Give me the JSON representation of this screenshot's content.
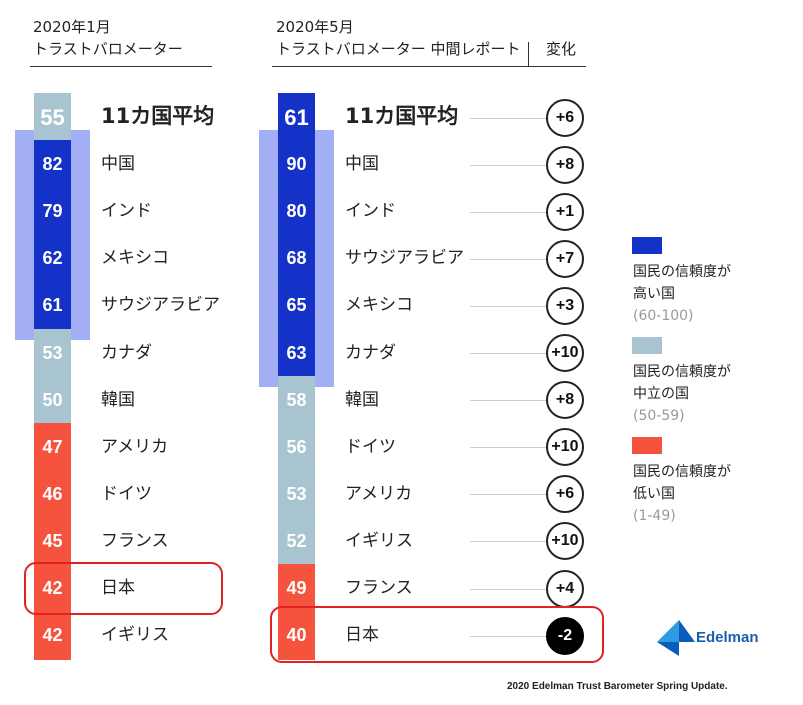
{
  "headers": {
    "left_line1": "2020年1月",
    "left_line2": "トラストバロメーター",
    "right_line1": "2020年5月",
    "right_line2": "トラストバロメーター 中間レポート",
    "change_label": "変化"
  },
  "colors": {
    "high": "#1432c8",
    "neutral": "#a9c4d1",
    "low": "#f5533d",
    "band": "#a3aff5",
    "highlight": "#e02222"
  },
  "chart_data": {
    "type": "table",
    "columns": [
      "2020年1月 トラストバロメーター",
      "2020年5月 トラストバロメーター 中間レポート",
      "変化"
    ],
    "january": [
      {
        "name": "11カ国平均",
        "value": 55,
        "value_label": "55",
        "level": "neutral"
      },
      {
        "name": "中国",
        "value": 82,
        "value_label": "82",
        "level": "high"
      },
      {
        "name": "インド",
        "value": 79,
        "value_label": "79",
        "level": "high"
      },
      {
        "name": "メキシコ",
        "value": 62,
        "value_label": "62",
        "level": "high"
      },
      {
        "name": "サウジアラビア",
        "value": 61,
        "value_label": "61",
        "level": "high"
      },
      {
        "name": "カナダ",
        "value": 53,
        "value_label": "53",
        "level": "neutral"
      },
      {
        "name": "韓国",
        "value": 50,
        "value_label": "50",
        "level": "neutral"
      },
      {
        "name": "アメリカ",
        "value": 47,
        "value_label": "47",
        "level": "low"
      },
      {
        "name": "ドイツ",
        "value": 46,
        "value_label": "46",
        "level": "low"
      },
      {
        "name": "フランス",
        "value": 45,
        "value_label": "45",
        "level": "low"
      },
      {
        "name": "日本",
        "value": 42,
        "value_label": "42",
        "level": "low"
      },
      {
        "name": "イギリス",
        "value": 42,
        "value_label": "42",
        "level": "low"
      }
    ],
    "may": [
      {
        "name": "11カ国平均",
        "value": 61,
        "value_label": "61",
        "level": "high",
        "change": 6,
        "change_label": "+6"
      },
      {
        "name": "中国",
        "value": 90,
        "value_label": "90",
        "level": "high",
        "change": 8,
        "change_label": "+8"
      },
      {
        "name": "インド",
        "value": 80,
        "value_label": "80",
        "level": "high",
        "change": 1,
        "change_label": "+1"
      },
      {
        "name": "サウジアラビア",
        "value": 68,
        "value_label": "68",
        "level": "high",
        "change": 7,
        "change_label": "+7"
      },
      {
        "name": "メキシコ",
        "value": 65,
        "value_label": "65",
        "level": "high",
        "change": 3,
        "change_label": "+3"
      },
      {
        "name": "カナダ",
        "value": 63,
        "value_label": "63",
        "level": "high",
        "change": 10,
        "change_label": "+10"
      },
      {
        "name": "韓国",
        "value": 58,
        "value_label": "58",
        "level": "neutral",
        "change": 8,
        "change_label": "+8"
      },
      {
        "name": "ドイツ",
        "value": 56,
        "value_label": "56",
        "level": "neutral",
        "change": 10,
        "change_label": "+10"
      },
      {
        "name": "アメリカ",
        "value": 53,
        "value_label": "53",
        "level": "neutral",
        "change": 6,
        "change_label": "+6"
      },
      {
        "name": "イギリス",
        "value": 52,
        "value_label": "52",
        "level": "neutral",
        "change": 10,
        "change_label": "+10"
      },
      {
        "name": "フランス",
        "value": 49,
        "value_label": "49",
        "level": "low",
        "change": 4,
        "change_label": "+4"
      },
      {
        "name": "日本",
        "value": 40,
        "value_label": "40",
        "level": "low",
        "change": -2,
        "change_label": "-2"
      }
    ],
    "highlighted": "日本"
  },
  "legend": [
    {
      "level": "high",
      "line1": "国民の信頼度が",
      "line2": "高い国",
      "range": "(60-100)"
    },
    {
      "level": "neutral",
      "line1": "国民の信頼度が",
      "line2": "中立の国",
      "range": "(50-59)"
    },
    {
      "level": "low",
      "line1": "国民の信頼度が",
      "line2": "低い国",
      "range": "(1-49)"
    }
  ],
  "logo": {
    "icon": "edelman-logo-icon",
    "text": "Edelman"
  },
  "source": "2020 Edelman Trust Barometer Spring Update."
}
